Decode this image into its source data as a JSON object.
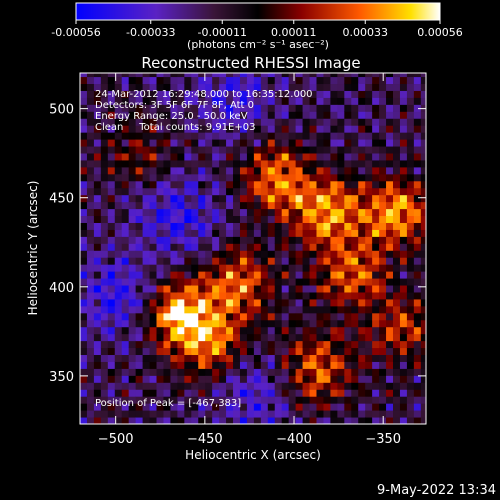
{
  "chart_data": {
    "type": "heatmap",
    "title": "Reconstructed RHESSI Image",
    "xlabel": "Heliocentric X (arcsec)",
    "ylabel": "Heliocentric Y (arcsec)",
    "xlim": [
      -520,
      -326
    ],
    "ylim": [
      323,
      520
    ],
    "xticks": [
      -500,
      -450,
      -400,
      -350
    ],
    "yticks": [
      350,
      400,
      450,
      500
    ],
    "colorbar": {
      "colormap": "blue-purple-red-yellow-white",
      "range": [
        -0.00056,
        0.00056
      ],
      "tick_values": [
        -0.00056,
        -0.00033,
        -0.00011,
        0.00011,
        0.00033,
        0.00056
      ],
      "tick_labels": [
        "-0.00056",
        "-0.00033",
        "-0.00011",
        "0.00011",
        "0.00033",
        "0.00056"
      ],
      "unit_label": "(photons cm⁻² s⁻¹ asec⁻²)"
    },
    "info_lines": [
      "24-Mar-2012 16:29:48.000 to 16:35:12.000",
      "Detectors: 3F 5F 6F 7F 8F, Att 0",
      "Energy Range: 25.0 - 50.0 keV",
      "Clean     Total counts: 9.91E+03"
    ],
    "peak_label": "Position of Peak = [-467,383]",
    "peak": [
      -467,
      383
    ],
    "sources": [
      {
        "x": -467,
        "y": 383,
        "value": 0.00056
      },
      {
        "x": -448,
        "y": 366,
        "value": 0.0004
      },
      {
        "x": -433,
        "y": 400,
        "value": 0.00042
      },
      {
        "x": -412,
        "y": 460,
        "value": 0.00045
      },
      {
        "x": -384,
        "y": 440,
        "value": 0.0005
      },
      {
        "x": -345,
        "y": 440,
        "value": 0.00052
      },
      {
        "x": -370,
        "y": 405,
        "value": 0.0004
      },
      {
        "x": -388,
        "y": 352,
        "value": 0.00042
      },
      {
        "x": -340,
        "y": 375,
        "value": 0.00032
      },
      {
        "x": -490,
        "y": 472,
        "value": 0.00022
      }
    ],
    "negatives": [
      {
        "x": -500,
        "y": 392,
        "value": -0.0003
      },
      {
        "x": -468,
        "y": 438,
        "value": -0.00028
      },
      {
        "x": -435,
        "y": 505,
        "value": -0.00024
      },
      {
        "x": -425,
        "y": 338,
        "value": -0.00022
      }
    ]
  },
  "footer": {
    "date": "9-May-2022 13:34"
  }
}
